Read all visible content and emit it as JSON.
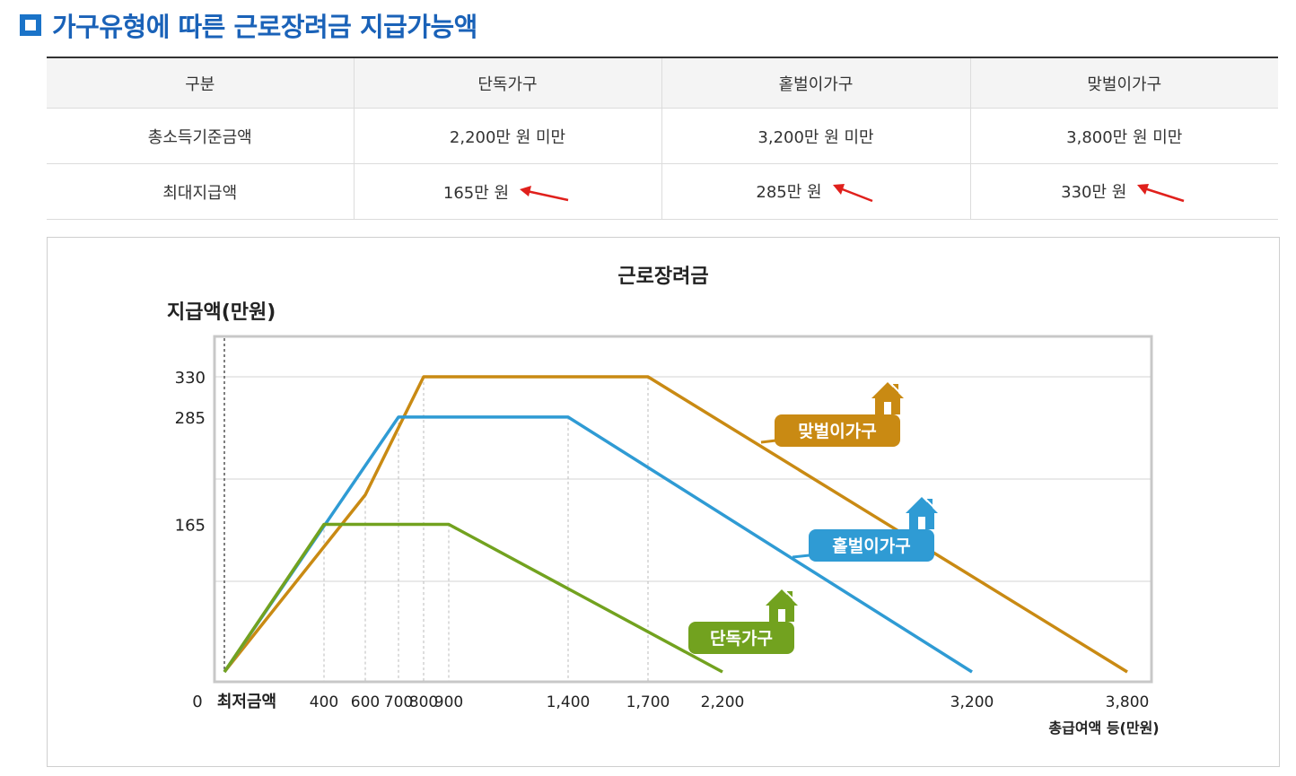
{
  "heading": {
    "title": "가구유형에 따른 근로장려금 지급가능액"
  },
  "table": {
    "headers": [
      "구분",
      "단독가구",
      "홑벌이가구",
      "맞벌이가구"
    ],
    "rows": [
      {
        "label": "총소득기준금액",
        "values": [
          "2,200만 원 미만",
          "3,200만 원 미만",
          "3,800만 원 미만"
        ]
      },
      {
        "label": "최대지급액",
        "values": [
          "165만 원",
          "285만 원",
          "330만 원"
        ]
      }
    ],
    "arrow_color": "#e0201c"
  },
  "chart_data": {
    "type": "line",
    "title": "근로장려금",
    "ylabel": "지급액(만원)",
    "xlabel": "총급여액 등(만원)",
    "x_origin_label": "0",
    "x_min_label": "최저금액",
    "ylim": [
      0,
      360
    ],
    "y_ticks": [
      165,
      285,
      330
    ],
    "y_tick_labels": [
      "165",
      "285",
      "330"
    ],
    "x_ticks": [
      400,
      600,
      700,
      800,
      900,
      1400,
      1700,
      2200,
      3200,
      3800
    ],
    "x_tick_labels": [
      "400",
      "600",
      "700",
      "800",
      "900",
      "1,400",
      "1,700",
      "2,200",
      "3,200",
      "3,800"
    ],
    "gridlines": "horizontal",
    "series": [
      {
        "name": "맞벌이가구",
        "color": "#c98a13",
        "points": [
          [
            0,
            0
          ],
          [
            600,
            198
          ],
          [
            800,
            330
          ],
          [
            1700,
            330
          ],
          [
            3800,
            0
          ]
        ]
      },
      {
        "name": "홑벌이가구",
        "color": "#2f9bd4",
        "points": [
          [
            0,
            0
          ],
          [
            700,
            285
          ],
          [
            1400,
            285
          ],
          [
            3200,
            0
          ]
        ]
      },
      {
        "name": "단독가구",
        "color": "#72a21f",
        "points": [
          [
            0,
            0
          ],
          [
            400,
            165
          ],
          [
            900,
            165
          ],
          [
            2200,
            0
          ]
        ]
      }
    ]
  }
}
